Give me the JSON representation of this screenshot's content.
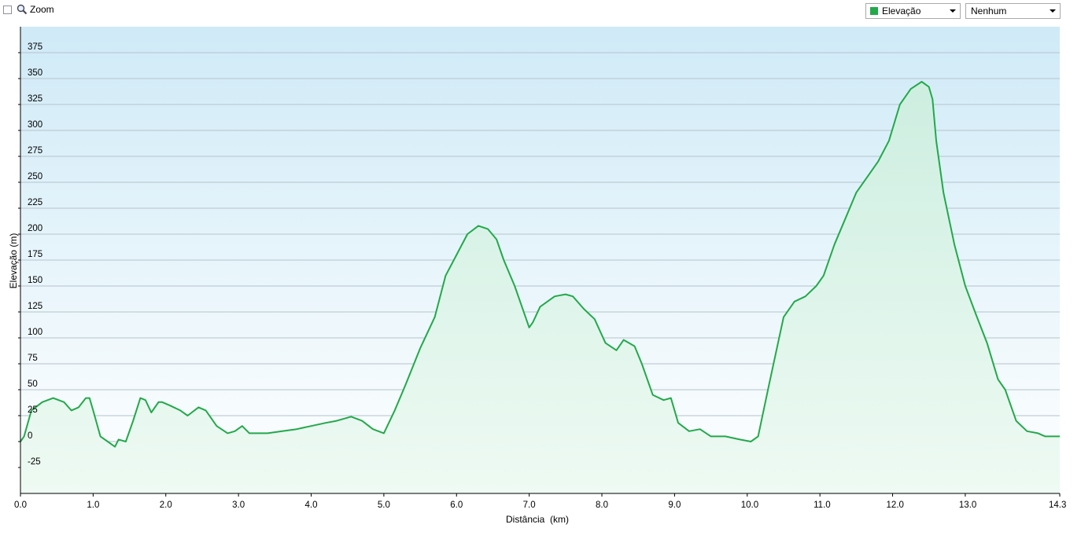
{
  "toolbar": {
    "zoom_label": "Zoom",
    "series_select_value": "Elevação",
    "compare_select_value": "Nenhum",
    "series_color": "#22a94a"
  },
  "chart_data": {
    "type": "area",
    "xlabel": "Distância  (km)",
    "ylabel": "Elevação (m)",
    "xlim": [
      0,
      14.3
    ],
    "ylim": [
      -50,
      400
    ],
    "x_ticks": [
      "0.0",
      "1.0",
      "2.0",
      "3.0",
      "4.0",
      "5.0",
      "6.0",
      "7.0",
      "8.0",
      "9.0",
      "10.0",
      "11.0",
      "12.0",
      "13.0",
      "14.3"
    ],
    "x_tick_values": [
      0,
      1,
      2,
      3,
      4,
      5,
      6,
      7,
      8,
      9,
      10,
      11,
      12,
      13,
      14.3
    ],
    "y_ticks": [
      "375",
      "350",
      "325",
      "300",
      "275",
      "250",
      "225",
      "200",
      "175",
      "150",
      "125",
      "100",
      "75",
      "50",
      "25",
      "0",
      "-25"
    ],
    "y_tick_values": [
      375,
      350,
      325,
      300,
      275,
      250,
      225,
      200,
      175,
      150,
      125,
      100,
      75,
      50,
      25,
      0,
      -25
    ],
    "grid": true,
    "legend": "none",
    "series": [
      {
        "color": "#22a94a",
        "x": [
          0,
          0.05,
          0.15,
          0.3,
          0.45,
          0.6,
          0.7,
          0.8,
          0.9,
          0.95,
          1.0,
          1.1,
          1.2,
          1.3,
          1.35,
          1.45,
          1.55,
          1.65,
          1.72,
          1.8,
          1.9,
          1.95,
          2.05,
          2.2,
          2.3,
          2.45,
          2.55,
          2.7,
          2.85,
          2.95,
          3.05,
          3.15,
          3.25,
          3.4,
          3.6,
          3.8,
          4.0,
          4.2,
          4.35,
          4.55,
          4.7,
          4.85,
          5.0,
          5.15,
          5.3,
          5.5,
          5.7,
          5.85,
          6.0,
          6.15,
          6.3,
          6.43,
          6.55,
          6.65,
          6.8,
          7.0,
          7.05,
          7.15,
          7.35,
          7.5,
          7.6,
          7.75,
          7.9,
          8.05,
          8.2,
          8.3,
          8.45,
          8.55,
          8.7,
          8.85,
          8.95,
          9.05,
          9.2,
          9.35,
          9.5,
          9.7,
          9.9,
          10.05,
          10.15,
          10.3,
          10.5,
          10.65,
          10.8,
          10.95,
          11.05,
          11.2,
          11.35,
          11.5,
          11.65,
          11.8,
          11.95,
          12.1,
          12.25,
          12.4,
          12.5,
          12.55,
          12.6,
          12.7,
          12.85,
          13.0,
          13.15,
          13.3,
          13.45,
          13.55,
          13.7,
          13.85,
          14.0,
          14.1,
          14.2,
          14.3
        ],
        "values": [
          0,
          5,
          30,
          38,
          42,
          38,
          30,
          33,
          42,
          42,
          30,
          5,
          0,
          -5,
          2,
          0,
          20,
          42,
          40,
          28,
          38,
          38,
          35,
          30,
          25,
          33,
          30,
          15,
          8,
          10,
          15,
          8,
          8,
          8,
          10,
          12,
          15,
          18,
          20,
          24,
          20,
          12,
          8,
          30,
          55,
          90,
          120,
          160,
          180,
          200,
          208,
          205,
          195,
          175,
          150,
          110,
          115,
          130,
          140,
          142,
          140,
          128,
          118,
          95,
          88,
          98,
          92,
          75,
          45,
          40,
          42,
          18,
          10,
          12,
          5,
          5,
          2,
          0,
          5,
          55,
          120,
          135,
          140,
          150,
          160,
          190,
          215,
          240,
          255,
          270,
          290,
          325,
          340,
          347,
          342,
          330,
          290,
          240,
          190,
          150,
          122,
          95,
          60,
          50,
          20,
          10,
          8,
          5,
          5,
          5
        ]
      }
    ]
  }
}
